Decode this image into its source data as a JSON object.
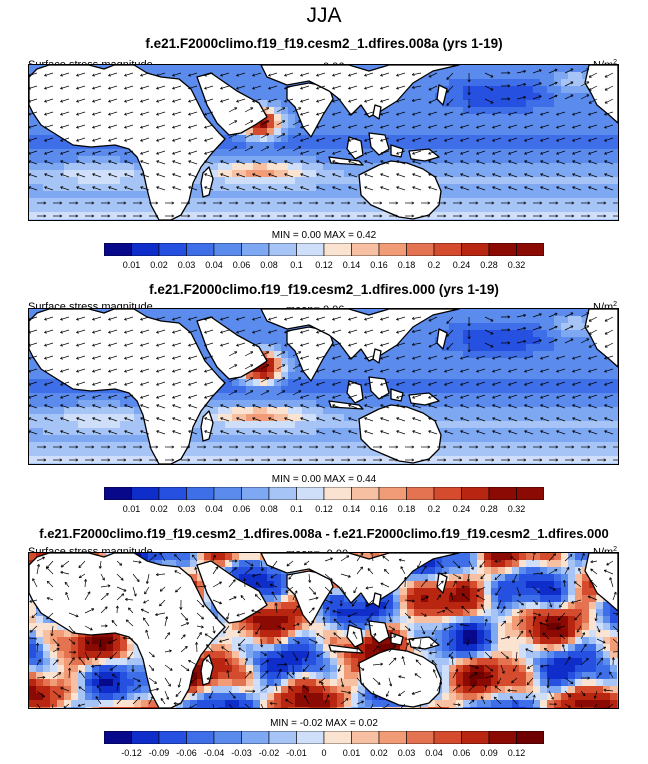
{
  "season": "JJA",
  "panels": [
    {
      "title": "f.e21.F2000climo.f19_f19.cesm2_1.dfires.008a (yrs 1-19)",
      "variable": "Surface stress magnitude",
      "mean": "mean=   0.06",
      "units": "N/m",
      "minmax": "MIN =   0.00 MAX =   0.42",
      "colorbar_labels": [
        "0.01",
        "0.02",
        "0.03",
        "0.04",
        "0.06",
        "0.08",
        "0.1",
        "0.12",
        "0.14",
        "0.16",
        "0.18",
        "0.2",
        "0.24",
        "0.28",
        "0.32"
      ],
      "colorbar_colors": [
        "#08088a",
        "#0f2dc8",
        "#2650e0",
        "#3f6fe8",
        "#5b8ced",
        "#7ea8f2",
        "#a7c4f6",
        "#cfdef9",
        "#fbe3d2",
        "#f7c0a2",
        "#f19c77",
        "#e47451",
        "#d44b2e",
        "#b82612",
        "#8c0a04"
      ]
    },
    {
      "title": "f.e21.F2000climo.f19_f19.cesm2_1.dfires.000 (yrs 1-19)",
      "variable": "Surface stress magnitude",
      "mean": "mean=   0.06",
      "units": "N/m",
      "minmax": "MIN =   0.00 MAX =   0.44",
      "colorbar_labels": [
        "0.01",
        "0.02",
        "0.03",
        "0.04",
        "0.06",
        "0.08",
        "0.1",
        "0.12",
        "0.14",
        "0.16",
        "0.18",
        "0.2",
        "0.24",
        "0.28",
        "0.32"
      ],
      "colorbar_colors": [
        "#08088a",
        "#0f2dc8",
        "#2650e0",
        "#3f6fe8",
        "#5b8ced",
        "#7ea8f2",
        "#a7c4f6",
        "#cfdef9",
        "#fbe3d2",
        "#f7c0a2",
        "#f19c77",
        "#e47451",
        "#d44b2e",
        "#b82612",
        "#8c0a04"
      ]
    },
    {
      "title": "f.e21.F2000climo.f19_f19.cesm2_1.dfires.008a - f.e21.F2000climo.f19_f19.cesm2_1.dfires.000",
      "variable": "Surface stress magnitude",
      "mean": "mean=  -0.00",
      "units": "N/m",
      "minmax": "MIN =  -0.02 MAX =   0.02",
      "colorbar_labels": [
        "-0.12",
        "-0.09",
        "-0.06",
        "-0.04",
        "-0.03",
        "-0.02",
        "-0.01",
        "0",
        "0.01",
        "0.02",
        "0.03",
        "0.04",
        "0.06",
        "0.09",
        "0.12"
      ],
      "colorbar_colors": [
        "#08088a",
        "#0f2dc8",
        "#2650e0",
        "#3f6fe8",
        "#5b8ced",
        "#7ea8f2",
        "#a7c4f6",
        "#cfdef9",
        "#fbe3d2",
        "#f7c0a2",
        "#f19c77",
        "#e47451",
        "#d44b2e",
        "#b82612",
        "#8c0a04",
        "#6e0000"
      ]
    }
  ],
  "chart_data": [
    {
      "type": "heatmap",
      "title": "f.e21.F2000climo.f19_f19.cesm2_1.dfires.008a (yrs 1-19)",
      "variable": "Surface stress magnitude",
      "units": "N/m^2",
      "mean": 0.06,
      "min": 0.0,
      "max": 0.42,
      "levels": [
        0.01,
        0.02,
        0.03,
        0.04,
        0.06,
        0.08,
        0.1,
        0.12,
        0.14,
        0.16,
        0.18,
        0.2,
        0.24,
        0.28,
        0.32
      ]
    },
    {
      "type": "heatmap",
      "title": "f.e21.F2000climo.f19_f19.cesm2_1.dfires.000 (yrs 1-19)",
      "variable": "Surface stress magnitude",
      "units": "N/m^2",
      "mean": 0.06,
      "min": 0.0,
      "max": 0.44,
      "levels": [
        0.01,
        0.02,
        0.03,
        0.04,
        0.06,
        0.08,
        0.1,
        0.12,
        0.14,
        0.16,
        0.18,
        0.2,
        0.24,
        0.28,
        0.32
      ]
    },
    {
      "type": "heatmap",
      "title": "f.e21.F2000climo.f19_f19.cesm2_1.dfires.008a - f.e21.F2000climo.f19_f19.cesm2_1.dfires.000",
      "variable": "Surface stress magnitude",
      "units": "N/m^2",
      "mean": -0.0,
      "min": -0.02,
      "max": 0.02,
      "levels": [
        -0.12,
        -0.09,
        -0.06,
        -0.04,
        -0.03,
        -0.02,
        -0.01,
        0,
        0.01,
        0.02,
        0.03,
        0.04,
        0.06,
        0.09,
        0.12
      ]
    }
  ]
}
